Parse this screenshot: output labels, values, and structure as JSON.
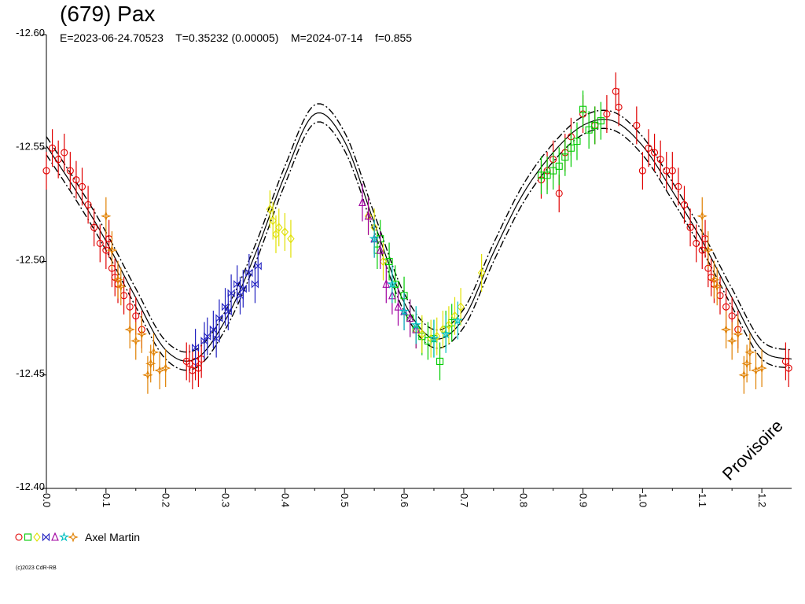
{
  "header": {
    "title": "(679) Pax",
    "params": "E=2023-06-24.70523    T=0.35232 (0.00005)    M=2024-07-14    f=0.855"
  },
  "watermark": "Provisoire",
  "legend": {
    "label": "Axel Martin",
    "markers": [
      {
        "shape": "circle",
        "color": "#e00000"
      },
      {
        "shape": "square",
        "color": "#00cc00"
      },
      {
        "shape": "diamond",
        "color": "#e0e000"
      },
      {
        "shape": "bowtie",
        "color": "#2020c0"
      },
      {
        "shape": "triangle",
        "color": "#a000a0"
      },
      {
        "shape": "star",
        "color": "#00c0c0"
      },
      {
        "shape": "star4",
        "color": "#e08000"
      }
    ]
  },
  "copyright": "(c)2023 CdR-RB",
  "chart_data": {
    "type": "scatter",
    "xlim": [
      0.0,
      1.25
    ],
    "ylim": [
      -12.6,
      -12.4
    ],
    "x_ticks": [
      0.0,
      0.1,
      0.2,
      0.3,
      0.4,
      0.5,
      0.6,
      0.7,
      0.8,
      0.9,
      1.0,
      1.1,
      1.2
    ],
    "x_tick_labels": [
      "0.0",
      "0.1",
      "0.2",
      "0.3",
      "0.4",
      "0.5",
      "0.6",
      "0.7",
      "0.8",
      "0.9",
      "1.0",
      "1.1",
      "1.2"
    ],
    "y_ticks": [
      -12.6,
      -12.55,
      -12.5,
      -12.45,
      -12.4
    ],
    "y_tick_labels": [
      "-12.60",
      "-12.55",
      "-12.50",
      "-12.45",
      "-12.40"
    ],
    "fit_curve": [
      [
        0.0,
        -12.551
      ],
      [
        0.05,
        -12.531
      ],
      [
        0.1,
        -12.509
      ],
      [
        0.15,
        -12.484
      ],
      [
        0.2,
        -12.461
      ],
      [
        0.25,
        -12.457
      ],
      [
        0.3,
        -12.474
      ],
      [
        0.35,
        -12.503
      ],
      [
        0.4,
        -12.538
      ],
      [
        0.45,
        -12.565
      ],
      [
        0.5,
        -12.553
      ],
      [
        0.55,
        -12.517
      ],
      [
        0.6,
        -12.482
      ],
      [
        0.65,
        -12.466
      ],
      [
        0.7,
        -12.475
      ],
      [
        0.75,
        -12.504
      ],
      [
        0.8,
        -12.53
      ],
      [
        0.85,
        -12.548
      ],
      [
        0.9,
        -12.56
      ],
      [
        0.95,
        -12.562
      ],
      [
        1.0,
        -12.551
      ],
      [
        1.05,
        -12.531
      ],
      [
        1.1,
        -12.509
      ],
      [
        1.15,
        -12.484
      ],
      [
        1.2,
        -12.461
      ],
      [
        1.25,
        -12.457
      ]
    ],
    "fit_band": 0.004,
    "series": [
      {
        "marker": "circle",
        "color": "#e00000",
        "points": [
          [
            0.0,
            -12.54
          ],
          [
            0.01,
            -12.55
          ],
          [
            0.02,
            -12.545
          ],
          [
            0.03,
            -12.548
          ],
          [
            0.04,
            -12.54
          ],
          [
            0.05,
            -12.536
          ],
          [
            0.06,
            -12.533
          ],
          [
            0.07,
            -12.525
          ],
          [
            0.08,
            -12.515
          ],
          [
            0.09,
            -12.508
          ],
          [
            0.1,
            -12.505
          ],
          [
            0.105,
            -12.51
          ],
          [
            0.11,
            -12.497
          ],
          [
            0.115,
            -12.493
          ],
          [
            0.12,
            -12.49
          ],
          [
            0.13,
            -12.485
          ],
          [
            0.14,
            -12.48
          ],
          [
            0.15,
            -12.476
          ],
          [
            0.16,
            -12.47
          ],
          [
            0.235,
            -12.456
          ],
          [
            0.24,
            -12.455
          ],
          [
            0.245,
            -12.452
          ],
          [
            0.25,
            -12.456
          ],
          [
            0.255,
            -12.453
          ],
          [
            0.26,
            -12.457
          ],
          [
            0.83,
            -12.536
          ],
          [
            0.84,
            -12.54
          ],
          [
            0.85,
            -12.545
          ],
          [
            0.86,
            -12.53
          ],
          [
            0.87,
            -12.548
          ],
          [
            0.88,
            -12.555
          ],
          [
            0.9,
            -12.565
          ],
          [
            0.92,
            -12.56
          ],
          [
            0.94,
            -12.565
          ],
          [
            0.955,
            -12.575
          ],
          [
            0.96,
            -12.568
          ],
          [
            0.99,
            -12.56
          ],
          [
            1.0,
            -12.54
          ],
          [
            1.01,
            -12.55
          ],
          [
            1.02,
            -12.548
          ],
          [
            1.03,
            -12.545
          ],
          [
            1.04,
            -12.54
          ],
          [
            1.05,
            -12.54
          ],
          [
            1.06,
            -12.533
          ],
          [
            1.07,
            -12.525
          ],
          [
            1.08,
            -12.515
          ],
          [
            1.09,
            -12.508
          ],
          [
            1.1,
            -12.505
          ],
          [
            1.105,
            -12.51
          ],
          [
            1.11,
            -12.497
          ],
          [
            1.115,
            -12.493
          ],
          [
            1.12,
            -12.49
          ],
          [
            1.13,
            -12.485
          ],
          [
            1.14,
            -12.48
          ],
          [
            1.15,
            -12.476
          ],
          [
            1.16,
            -12.47
          ],
          [
            1.24,
            -12.456
          ],
          [
            1.245,
            -12.453
          ]
        ]
      },
      {
        "marker": "square",
        "color": "#00cc00",
        "points": [
          [
            0.555,
            -12.505
          ],
          [
            0.56,
            -12.51
          ],
          [
            0.575,
            -12.5
          ],
          [
            0.585,
            -12.49
          ],
          [
            0.6,
            -12.485
          ],
          [
            0.61,
            -12.475
          ],
          [
            0.62,
            -12.47
          ],
          [
            0.63,
            -12.467
          ],
          [
            0.64,
            -12.465
          ],
          [
            0.65,
            -12.466
          ],
          [
            0.66,
            -12.456
          ],
          [
            0.67,
            -12.47
          ],
          [
            0.68,
            -12.473
          ],
          [
            0.83,
            -12.538
          ],
          [
            0.84,
            -12.538
          ],
          [
            0.85,
            -12.54
          ],
          [
            0.86,
            -12.542
          ],
          [
            0.87,
            -12.546
          ],
          [
            0.88,
            -12.55
          ],
          [
            0.89,
            -12.553
          ],
          [
            0.9,
            -12.567
          ],
          [
            0.91,
            -12.558
          ],
          [
            0.92,
            -12.56
          ],
          [
            0.93,
            -12.562
          ]
        ]
      },
      {
        "marker": "diamond",
        "color": "#e0e000",
        "points": [
          [
            0.375,
            -12.523
          ],
          [
            0.38,
            -12.518
          ],
          [
            0.385,
            -12.512
          ],
          [
            0.39,
            -12.515
          ],
          [
            0.4,
            -12.513
          ],
          [
            0.41,
            -12.51
          ],
          [
            0.54,
            -12.52
          ],
          [
            0.55,
            -12.515
          ],
          [
            0.565,
            -12.5
          ],
          [
            0.62,
            -12.47
          ],
          [
            0.63,
            -12.468
          ],
          [
            0.645,
            -12.466
          ],
          [
            0.655,
            -12.467
          ],
          [
            0.665,
            -12.47
          ],
          [
            0.675,
            -12.472
          ],
          [
            0.685,
            -12.476
          ],
          [
            0.695,
            -12.48
          ],
          [
            0.73,
            -12.495
          ]
        ]
      },
      {
        "marker": "bowtie",
        "color": "#2020c0",
        "points": [
          [
            0.25,
            -12.462
          ],
          [
            0.265,
            -12.465
          ],
          [
            0.27,
            -12.467
          ],
          [
            0.28,
            -12.47
          ],
          [
            0.285,
            -12.466
          ],
          [
            0.29,
            -12.475
          ],
          [
            0.3,
            -12.48
          ],
          [
            0.305,
            -12.478
          ],
          [
            0.31,
            -12.486
          ],
          [
            0.32,
            -12.49
          ],
          [
            0.325,
            -12.485
          ],
          [
            0.33,
            -12.488
          ],
          [
            0.34,
            -12.495
          ],
          [
            0.35,
            -12.49
          ],
          [
            0.355,
            -12.498
          ]
        ]
      },
      {
        "marker": "triangle",
        "color": "#a000a0",
        "points": [
          [
            0.53,
            -12.526
          ],
          [
            0.54,
            -12.52
          ],
          [
            0.55,
            -12.51
          ],
          [
            0.56,
            -12.505
          ],
          [
            0.57,
            -12.49
          ],
          [
            0.58,
            -12.485
          ],
          [
            0.59,
            -12.48
          ],
          [
            0.6,
            -12.478
          ],
          [
            0.61,
            -12.475
          ],
          [
            0.62,
            -12.47
          ]
        ]
      },
      {
        "marker": "star",
        "color": "#00c0c0",
        "points": [
          [
            0.55,
            -12.51
          ],
          [
            0.58,
            -12.49
          ],
          [
            0.6,
            -12.478
          ],
          [
            0.62,
            -12.472
          ],
          [
            0.65,
            -12.466
          ],
          [
            0.67,
            -12.468
          ],
          [
            0.69,
            -12.474
          ]
        ]
      },
      {
        "marker": "star4",
        "color": "#e08000",
        "points": [
          [
            0.1,
            -12.52
          ],
          [
            0.11,
            -12.505
          ],
          [
            0.12,
            -12.492
          ],
          [
            0.125,
            -12.489
          ],
          [
            0.14,
            -12.47
          ],
          [
            0.15,
            -12.465
          ],
          [
            0.16,
            -12.468
          ],
          [
            0.17,
            -12.45
          ],
          [
            0.175,
            -12.455
          ],
          [
            0.18,
            -12.46
          ],
          [
            0.19,
            -12.452
          ],
          [
            0.2,
            -12.453
          ],
          [
            1.1,
            -12.52
          ],
          [
            1.11,
            -12.505
          ],
          [
            1.12,
            -12.492
          ],
          [
            1.125,
            -12.489
          ],
          [
            1.14,
            -12.47
          ],
          [
            1.15,
            -12.465
          ],
          [
            1.16,
            -12.468
          ],
          [
            1.17,
            -12.45
          ],
          [
            1.175,
            -12.455
          ],
          [
            1.18,
            -12.46
          ],
          [
            1.19,
            -12.452
          ],
          [
            1.2,
            -12.453
          ]
        ]
      }
    ]
  }
}
